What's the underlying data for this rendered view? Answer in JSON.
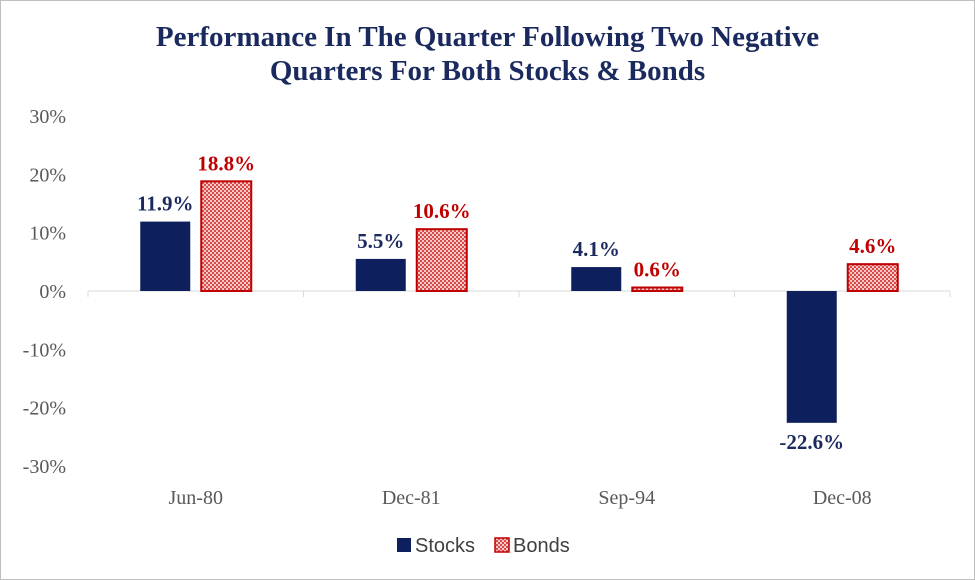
{
  "chart_data": {
    "type": "bar",
    "title_lines": [
      "Performance In The Quarter Following Two Negative",
      "Quarters For Both Stocks & Bonds"
    ],
    "categories": [
      "Jun-80",
      "Dec-81",
      "Sep-94",
      "Dec-08"
    ],
    "series": [
      {
        "name": "Stocks",
        "values": [
          11.9,
          5.5,
          4.1,
          -22.6
        ],
        "color": "#0d1f5c",
        "label_color": "#1b2a5e",
        "fill": "solid"
      },
      {
        "name": "Bonds",
        "values": [
          18.8,
          10.6,
          0.6,
          4.6
        ],
        "color": "#c00000",
        "label_color": "#c00000",
        "fill": "checkered"
      }
    ],
    "data_labels": [
      [
        "11.9%",
        "5.5%",
        "4.1%",
        "-22.6%"
      ],
      [
        "18.8%",
        "10.6%",
        "0.6%",
        "4.6%"
      ]
    ],
    "ylim": [
      -30,
      30
    ],
    "yticks": [
      30,
      20,
      10,
      0,
      -10,
      -20,
      -30
    ],
    "ytick_labels": [
      "30%",
      "20%",
      "10%",
      "0%",
      "-10%",
      "-20%",
      "-30%"
    ],
    "grid": false,
    "legend": "bottom",
    "xlabel": "",
    "ylabel": ""
  }
}
